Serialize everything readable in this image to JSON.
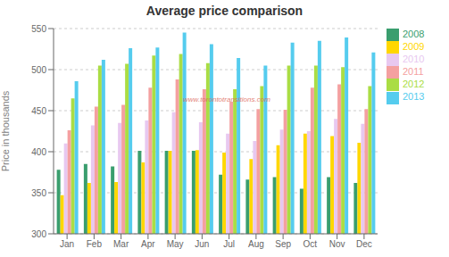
{
  "chart_data": {
    "type": "bar",
    "title": "Average price comparison",
    "ylabel": "Price in thousands",
    "categories": [
      "Jan",
      "Feb",
      "Mar",
      "Apr",
      "May",
      "Jun",
      "Jul",
      "Aug",
      "Sep",
      "Oct",
      "Nov",
      "Dec"
    ],
    "series": [
      {
        "name": "2008",
        "color": "#3A9E6E",
        "values": [
          378,
          385,
          382,
          401,
          401,
          401,
          372,
          366,
          369,
          355,
          369,
          362
        ]
      },
      {
        "name": "2009",
        "color": "#FFD700",
        "values": [
          347,
          362,
          363,
          387,
          401,
          402,
          399,
          391,
          408,
          422,
          419,
          411
        ]
      },
      {
        "name": "2010",
        "color": "#E8C8F0",
        "values": [
          410,
          432,
          435,
          438,
          448,
          436,
          422,
          413,
          427,
          425,
          440,
          434
        ]
      },
      {
        "name": "2011",
        "color": "#F4A0A0",
        "values": [
          426,
          455,
          457,
          478,
          488,
          476,
          461,
          452,
          451,
          478,
          482,
          452
        ]
      },
      {
        "name": "2012",
        "color": "#AADD44",
        "values": [
          465,
          505,
          507,
          517,
          519,
          508,
          476,
          480,
          505,
          505,
          503,
          480
        ]
      },
      {
        "name": "2013",
        "color": "#55CCEE",
        "values": [
          486,
          512,
          526,
          527,
          545,
          531,
          514,
          505,
          533,
          535,
          539,
          521
        ]
      }
    ],
    "ylim": [
      300,
      550
    ],
    "yticks": [
      300,
      350,
      400,
      450,
      500,
      550
    ],
    "grid": true,
    "legend": "right",
    "annotations": [
      "www.torontotransitions.com"
    ]
  }
}
